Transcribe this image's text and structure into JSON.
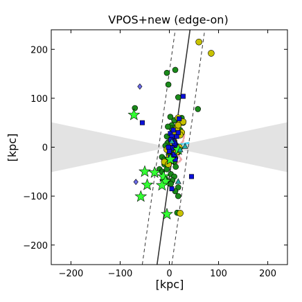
{
  "chart_data": {
    "type": "scatter",
    "title": "VPOS+new (edge-on)",
    "xlabel": "[kpc]",
    "ylabel": "[kpc]",
    "xlim": [
      -240,
      240
    ],
    "ylim": [
      -240,
      240
    ],
    "xticks": [
      -200,
      -100,
      0,
      100,
      200
    ],
    "yticks": [
      -200,
      -100,
      0,
      100,
      200
    ],
    "grid": false,
    "colors": {
      "zone_of_avoidance": "#e3e3e3",
      "plane_line": "#333333",
      "green_circle": "#1a8a1a",
      "yellow_circle": "#c8c200",
      "blue_square": "#0a10d8",
      "violet_diamond": "#6a6ae8",
      "green_star": "#33ff33",
      "teal_triangle": "#22aaaa",
      "pink_stream": "#f0a0a0",
      "cyan_stream": "#40d0f0"
    },
    "avoidance_zone": {
      "half_angle_deg": 12,
      "description_x_extent": 240
    },
    "plane_fit": {
      "center_line": [
        [
          -25,
          -240
        ],
        [
          42,
          240
        ]
      ],
      "upper_boundary": [
        [
          5,
          -240
        ],
        [
          72,
          240
        ]
      ],
      "lower_boundary": [
        [
          -55,
          -240
        ],
        [
          12,
          240
        ]
      ]
    },
    "series": [
      {
        "marker": "circle",
        "color_key": "green_circle",
        "size": 6,
        "x": [
          -5,
          12,
          -2,
          18,
          10,
          2,
          5,
          5,
          15,
          -5,
          18,
          -2,
          10,
          8,
          5,
          -1,
          12,
          5,
          10,
          -10,
          -5,
          18,
          -3,
          8,
          22,
          12,
          -15,
          -4,
          13,
          3,
          10,
          -20,
          -8,
          6,
          3,
          18,
          28,
          12,
          18,
          -15,
          -8,
          0,
          -70,
          58,
          -10,
          16,
          25,
          12
        ],
        "y": [
          152,
          158,
          128,
          102,
          55,
          62,
          45,
          38,
          30,
          22,
          25,
          10,
          12,
          0,
          -5,
          -15,
          -22,
          -25,
          -30,
          -35,
          -45,
          -10,
          42,
          18,
          35,
          5,
          -20,
          8,
          -40,
          -55,
          -60,
          -45,
          -65,
          -68,
          -75,
          -82,
          50,
          -90,
          -100,
          -50,
          3,
          -8,
          80,
          78,
          -25,
          -134,
          60,
          40
        ]
      },
      {
        "marker": "circle",
        "color_key": "yellow_circle",
        "size": 7,
        "x": [
          60,
          85,
          18,
          22,
          28,
          15,
          10,
          5,
          -5,
          0,
          25,
          12,
          18,
          20,
          -10,
          8,
          22,
          15,
          -2,
          22
        ],
        "y": [
          215,
          192,
          60,
          50,
          52,
          38,
          22,
          10,
          -5,
          -20,
          30,
          28,
          45,
          0,
          -30,
          15,
          25,
          -10,
          -35,
          -135
        ]
      },
      {
        "marker": "square",
        "color_key": "blue_square",
        "size": 6,
        "x": [
          28,
          -55,
          2,
          5,
          8,
          12,
          5,
          0,
          10,
          15,
          2,
          8,
          45,
          5,
          20,
          -2,
          12,
          18,
          3,
          10
        ],
        "y": [
          104,
          50,
          28,
          22,
          12,
          5,
          -2,
          -8,
          -15,
          22,
          -20,
          35,
          -60,
          -85,
          58,
          0,
          -25,
          30,
          15,
          8
        ]
      },
      {
        "marker": "diamond",
        "color_key": "violet_diamond",
        "size": 6,
        "x": [
          -60,
          -68
        ],
        "y": [
          124,
          -71
        ]
      },
      {
        "marker": "star",
        "color_key": "green_star",
        "size": 8,
        "x": [
          -72,
          -58,
          -45,
          -50,
          -30,
          -12,
          -8,
          -15,
          2,
          -5,
          18
        ],
        "y": [
          66,
          -101,
          -77,
          -50,
          -52,
          -60,
          -70,
          -78,
          -25,
          -137,
          -5
        ]
      },
      {
        "marker": "triangle",
        "color_key": "teal_triangle",
        "size": 6,
        "x": [
          18,
          5,
          22,
          32
        ],
        "y": [
          -70,
          12,
          -5,
          2
        ]
      }
    ],
    "streams": [
      {
        "color_key": "pink_stream",
        "points": [
          [
            20,
            35
          ],
          [
            26,
            30
          ],
          [
            30,
            25
          ],
          [
            28,
            12
          ],
          [
            22,
            5
          ],
          [
            14,
            -2
          ],
          [
            8,
            -8
          ],
          [
            18,
            -15
          ],
          [
            24,
            -25
          ],
          [
            20,
            -30
          ],
          [
            10,
            -35
          ],
          [
            2,
            -28
          ]
        ]
      },
      {
        "color_key": "cyan_stream",
        "points": [
          [
            18,
            5
          ],
          [
            24,
            6
          ],
          [
            30,
            7
          ],
          [
            36,
            8
          ],
          [
            42,
            9
          ]
        ]
      }
    ]
  }
}
